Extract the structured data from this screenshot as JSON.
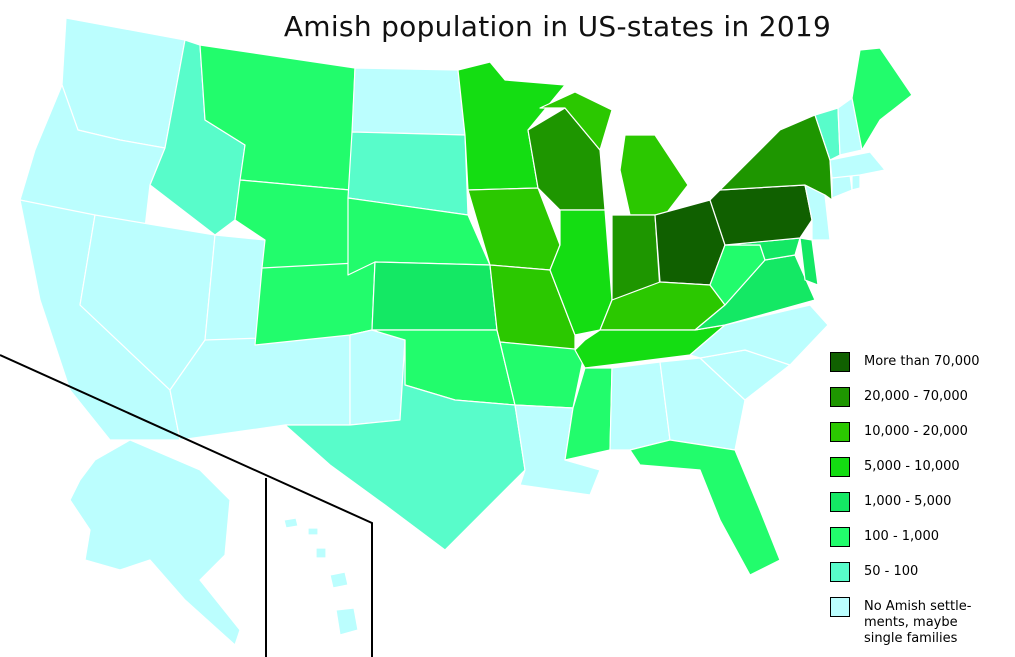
{
  "title": "Amish population in US-states in 2019",
  "colors": {
    "c7": "#106000",
    "c6": "#1e9600",
    "c5": "#2bc800",
    "c4": "#14dd12",
    "c3": "#14e864",
    "c2": "#22fc6c",
    "c1": "#58fcca",
    "c0": "#bbfefe",
    "border": "#ffffff",
    "inset_line": "#000000"
  },
  "legend": [
    {
      "label": "More than 70,000",
      "color": "c7"
    },
    {
      "label": "20,000 - 70,000",
      "color": "c6"
    },
    {
      "label": "10,000 - 20,000",
      "color": "c5"
    },
    {
      "label": "5,000 - 10,000",
      "color": "c4"
    },
    {
      "label": "1,000 - 5,000",
      "color": "c3"
    },
    {
      "label": "100 - 1,000",
      "color": "c2"
    },
    {
      "label": "50 - 100",
      "color": "c1"
    },
    {
      "label": "No Amish settle-\nments, maybe\nsingle families",
      "color": "c0"
    }
  ],
  "states": [
    {
      "id": "WA",
      "color": "c0"
    },
    {
      "id": "OR",
      "color": "c0"
    },
    {
      "id": "CA",
      "color": "c0"
    },
    {
      "id": "NV",
      "color": "c0"
    },
    {
      "id": "UT",
      "color": "c0"
    },
    {
      "id": "AZ",
      "color": "c0"
    },
    {
      "id": "ID",
      "color": "c1"
    },
    {
      "id": "MT",
      "color": "c2"
    },
    {
      "id": "WY",
      "color": "c2"
    },
    {
      "id": "CO",
      "color": "c2"
    },
    {
      "id": "NM",
      "color": "c0"
    },
    {
      "id": "ND",
      "color": "c0"
    },
    {
      "id": "SD",
      "color": "c1"
    },
    {
      "id": "NE",
      "color": "c2"
    },
    {
      "id": "KS",
      "color": "c3"
    },
    {
      "id": "OK",
      "color": "c2"
    },
    {
      "id": "TX",
      "color": "c1"
    },
    {
      "id": "MN",
      "color": "c4"
    },
    {
      "id": "IA",
      "color": "c5"
    },
    {
      "id": "MO",
      "color": "c5"
    },
    {
      "id": "AR",
      "color": "c2"
    },
    {
      "id": "LA",
      "color": "c0"
    },
    {
      "id": "WI",
      "color": "c6"
    },
    {
      "id": "IL",
      "color": "c4"
    },
    {
      "id": "MI",
      "color": "c5"
    },
    {
      "id": "IN",
      "color": "c6"
    },
    {
      "id": "OH",
      "color": "c7"
    },
    {
      "id": "KY",
      "color": "c5"
    },
    {
      "id": "TN",
      "color": "c4"
    },
    {
      "id": "MS",
      "color": "c2"
    },
    {
      "id": "AL",
      "color": "c0"
    },
    {
      "id": "GA",
      "color": "c0"
    },
    {
      "id": "FL",
      "color": "c2"
    },
    {
      "id": "SC",
      "color": "c0"
    },
    {
      "id": "NC",
      "color": "c0"
    },
    {
      "id": "VA",
      "color": "c3"
    },
    {
      "id": "WV",
      "color": "c2"
    },
    {
      "id": "MD",
      "color": "c3"
    },
    {
      "id": "DE",
      "color": "c3"
    },
    {
      "id": "PA",
      "color": "c7"
    },
    {
      "id": "NJ",
      "color": "c0"
    },
    {
      "id": "NY",
      "color": "c6"
    },
    {
      "id": "CT",
      "color": "c0"
    },
    {
      "id": "RI",
      "color": "c0"
    },
    {
      "id": "MA",
      "color": "c0"
    },
    {
      "id": "VT",
      "color": "c1"
    },
    {
      "id": "NH",
      "color": "c0"
    },
    {
      "id": "ME",
      "color": "c2"
    },
    {
      "id": "AK",
      "color": "c0"
    },
    {
      "id": "HI",
      "color": "c0"
    }
  ]
}
